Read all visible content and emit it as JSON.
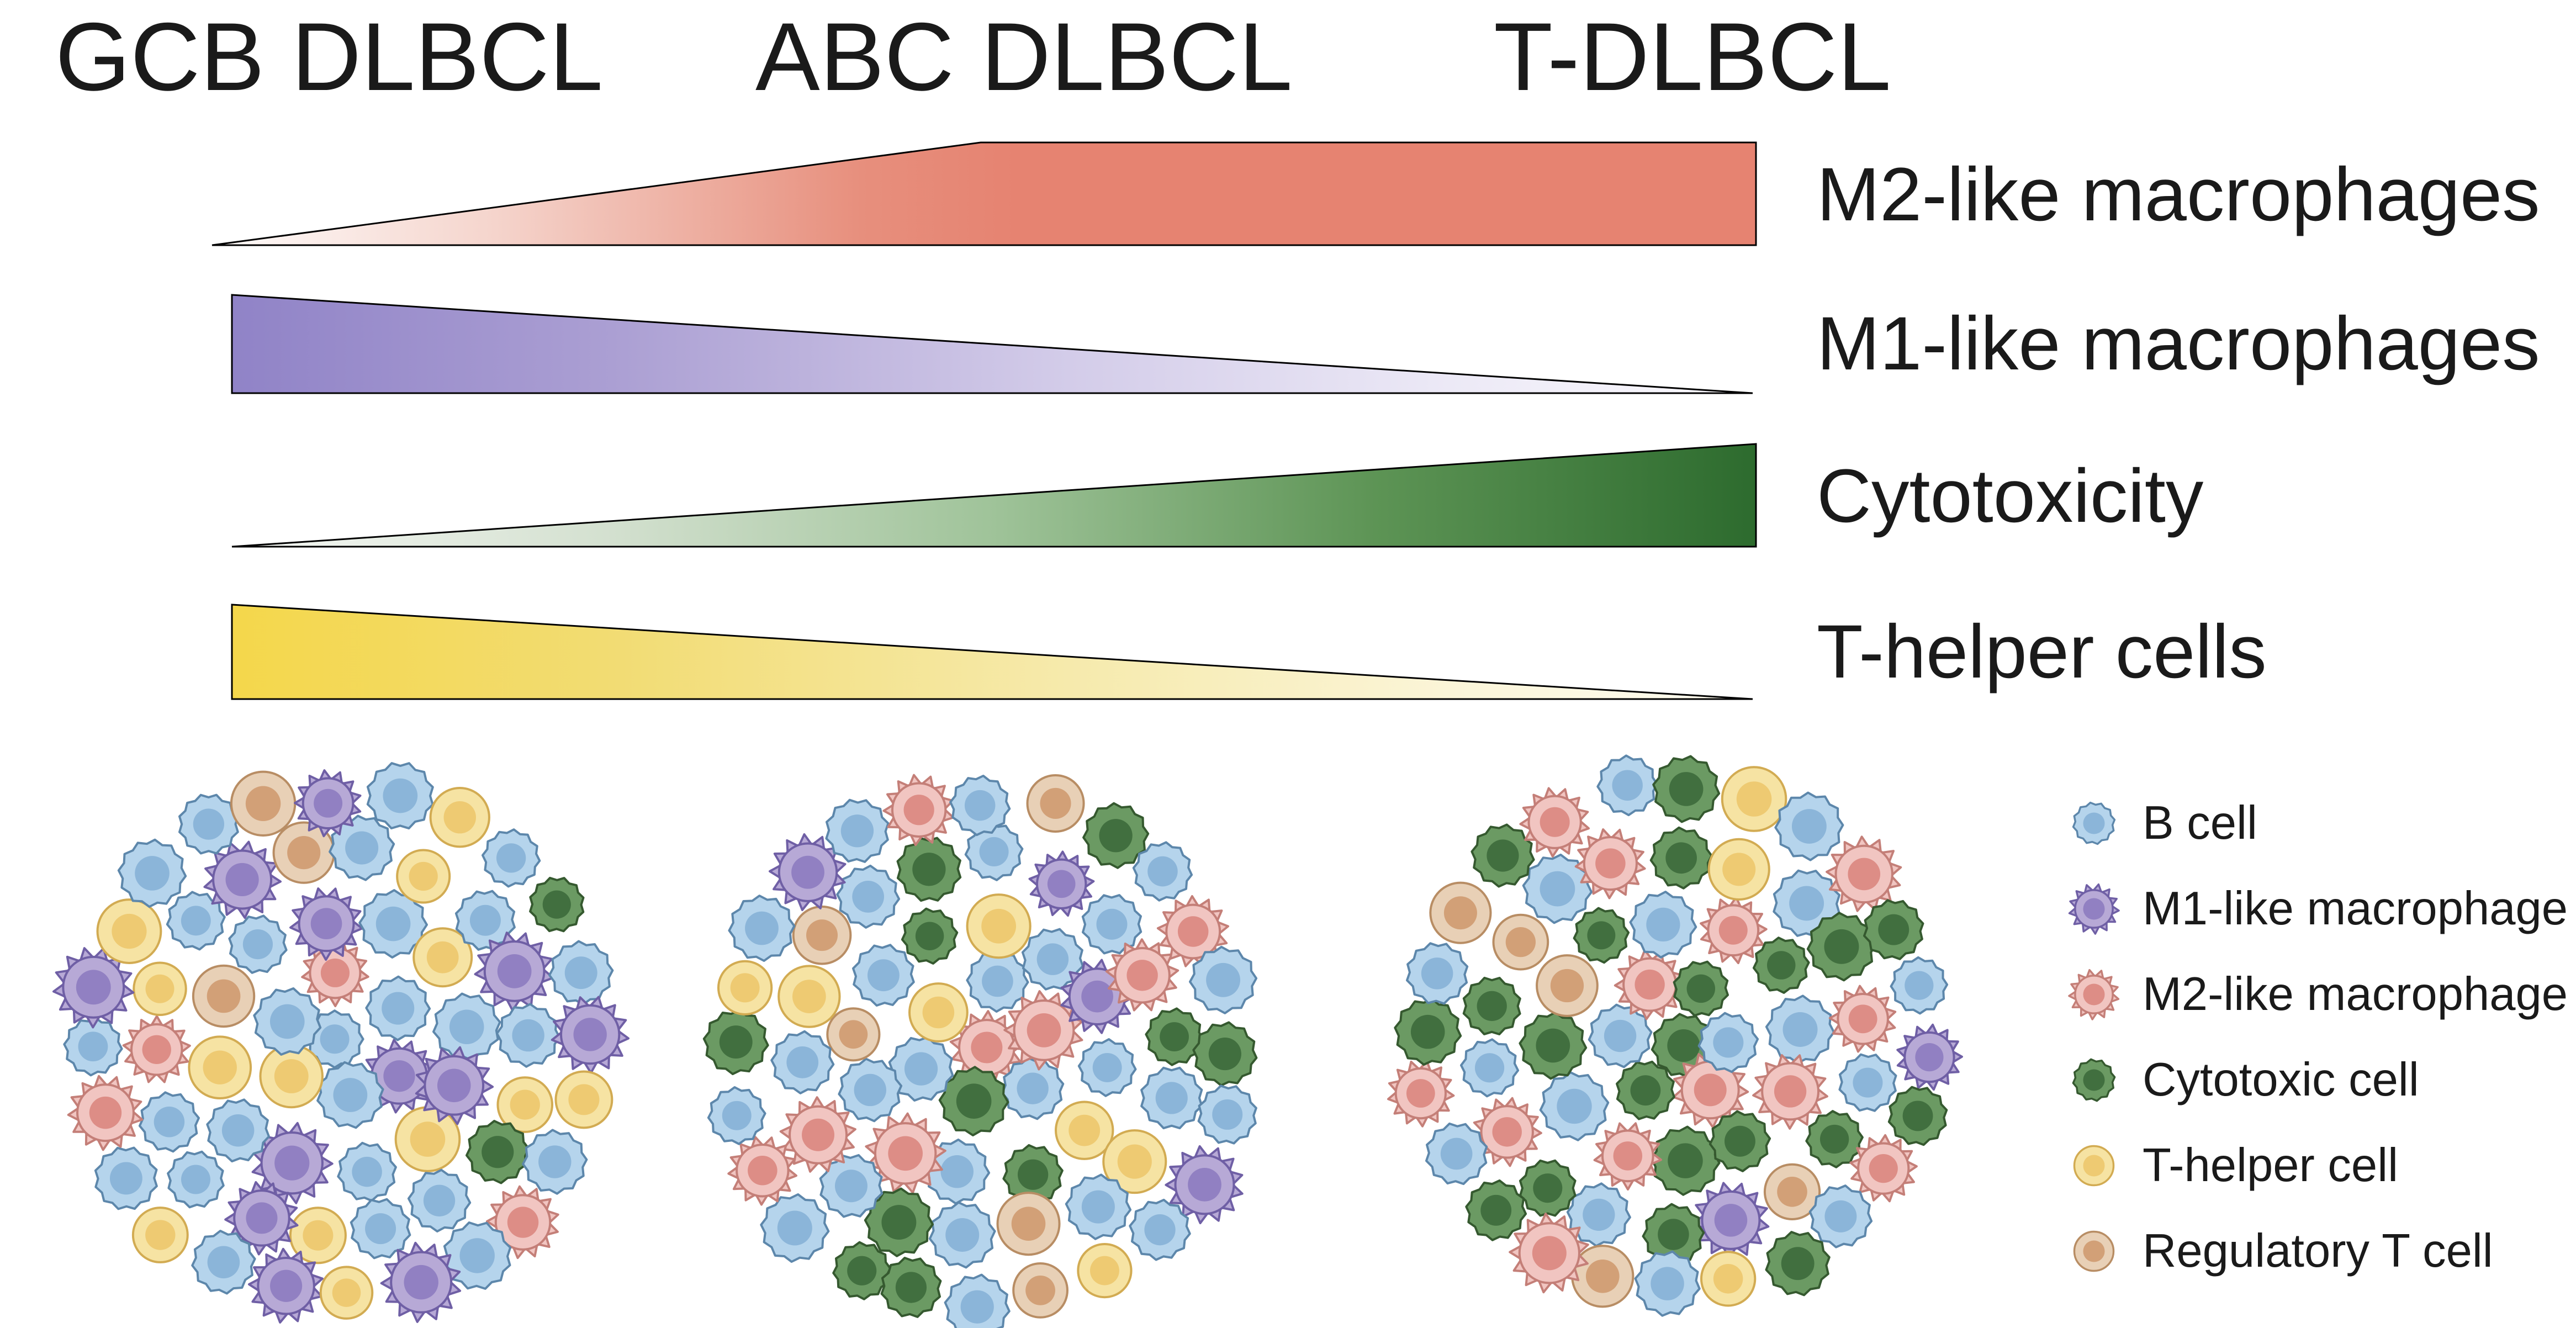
{
  "figure": {
    "background": "#ffffff",
    "columns": [
      {
        "label": "GCB DLBCL"
      },
      {
        "label": "ABC DLBCL"
      },
      {
        "label": "T-DLBCL"
      }
    ]
  },
  "gradient_bars": [
    {
      "label": "M2-like macrophages",
      "trend": "increases left to right, plateaus at right",
      "color": "#e68371",
      "stops": [
        {
          "offset": "0%",
          "color": "#fefbfa"
        },
        {
          "offset": "18%",
          "color": "#f5d5cd"
        },
        {
          "offset": "42%",
          "color": "#e78f7d"
        },
        {
          "offset": "52%",
          "color": "#e68371"
        },
        {
          "offset": "100%",
          "color": "#e68371"
        }
      ]
    },
    {
      "label": "M1-like macrophages",
      "trend": "decreases left to right",
      "color": "#9083c7",
      "stops": [
        {
          "offset": "0%",
          "color": "#9083c7"
        },
        {
          "offset": "25%",
          "color": "#ab9fd3"
        },
        {
          "offset": "55%",
          "color": "#d3cce9"
        },
        {
          "offset": "80%",
          "color": "#ece9f6"
        },
        {
          "offset": "100%",
          "color": "#faf9fd"
        }
      ]
    },
    {
      "label": "Cytotoxicity",
      "trend": "increases left to right",
      "color": "#2d6b2e",
      "stops": [
        {
          "offset": "0%",
          "color": "#f6f8f5"
        },
        {
          "offset": "25%",
          "color": "#d3e0cf"
        },
        {
          "offset": "50%",
          "color": "#9fc399"
        },
        {
          "offset": "75%",
          "color": "#5d9455"
        },
        {
          "offset": "100%",
          "color": "#2d6b2e"
        }
      ]
    },
    {
      "label": "T-helper cells",
      "trend": "decreases left to right",
      "color": "#f4d74b",
      "stops": [
        {
          "offset": "0%",
          "color": "#f4d74b"
        },
        {
          "offset": "25%",
          "color": "#f2dc73"
        },
        {
          "offset": "55%",
          "color": "#f6eaac"
        },
        {
          "offset": "80%",
          "color": "#fbf5d8"
        },
        {
          "offset": "100%",
          "color": "#fefcf2"
        }
      ]
    }
  ],
  "cell_types": {
    "B": {
      "label": "B cell",
      "icon_name": "b-cell-icon",
      "fill": "#b5d4ec",
      "nucleus": "#8bb5d9",
      "stroke": "#5d87ab",
      "edge": "bumpy"
    },
    "M1": {
      "label": "M1-like macrophage",
      "icon_name": "m1-like-macrophage-icon",
      "fill": "#b7a9d6",
      "nucleus": "#9180c2",
      "stroke": "#6f5fa5",
      "edge": "spiky"
    },
    "M2": {
      "label": "M2-like macrophage",
      "icon_name": "m2-like-macrophage-icon",
      "fill": "#f1c5c1",
      "nucleus": "#dd8d86",
      "stroke": "#c47f78",
      "edge": "spiky"
    },
    "C": {
      "label": "Cytotoxic cell",
      "icon_name": "cytotoxic-cell-icon",
      "fill": "#6b9a63",
      "nucleus": "#416f3f",
      "stroke": "#35592f",
      "edge": "bumpy"
    },
    "Th": {
      "label": "T-helper cell",
      "icon_name": "t-helper-cell-icon",
      "fill": "#f6e3a3",
      "nucleus": "#eeca72",
      "stroke": "#d2ab52",
      "edge": "smooth"
    },
    "Tr": {
      "label": "Regulatory T cell",
      "icon_name": "regulatory-t-cell-icon",
      "fill": "#e8d0b6",
      "nucleus": "#d2a077",
      "stroke": "#b88d64",
      "edge": "smooth"
    }
  },
  "legend": {
    "items": [
      {
        "type": "B",
        "label": "B cell"
      },
      {
        "type": "M1",
        "label": "M1-like macrophage"
      },
      {
        "type": "M2",
        "label": "M2-like macrophage"
      },
      {
        "type": "C",
        "label": "Cytotoxic cell"
      },
      {
        "type": "Th",
        "label": "T-helper cell"
      },
      {
        "type": "Tr",
        "label": "Regulatory T cell"
      }
    ]
  },
  "clusters": [
    {
      "name": "GCB DLBCL",
      "cells": [
        "B",
        "M1",
        "B",
        "Th",
        "B",
        "M2",
        "B",
        "Th",
        "B",
        "M1",
        "B",
        "Th",
        "Tr",
        "B",
        "M1",
        "B",
        "Th",
        "B",
        "M1",
        "B",
        "Th",
        "M1",
        "B",
        "B",
        "M2",
        "Th",
        "B",
        "M1",
        "Tr",
        "B",
        "Th",
        "B",
        "M1",
        "B",
        "Th",
        "C",
        "B",
        "M1",
        "B",
        "Th",
        "B",
        "M2",
        "B",
        "M1",
        "Th",
        "B",
        "B",
        "Tr",
        "M1",
        "B",
        "Th",
        "B",
        "C",
        "B",
        "M1",
        "Th",
        "B",
        "M2",
        "B",
        "M1",
        "Th"
      ]
    },
    {
      "name": "ABC DLBCL",
      "cells": [
        "M2",
        "B",
        "C",
        "B",
        "Th",
        "B",
        "M2",
        "C",
        "B",
        "M2",
        "B",
        "Tr",
        "B",
        "C",
        "Th",
        "B",
        "M1",
        "B",
        "Th",
        "B",
        "C",
        "B",
        "M2",
        "B",
        "Th",
        "Tr",
        "B",
        "C",
        "B",
        "M1",
        "B",
        "M2",
        "C",
        "B",
        "Th",
        "B",
        "Tr",
        "C",
        "B",
        "M2",
        "B",
        "C",
        "Th",
        "B",
        "M1",
        "B",
        "M2",
        "B",
        "Tr",
        "C",
        "B",
        "M2",
        "B",
        "C",
        "B",
        "M1",
        "B",
        "Th",
        "Tr",
        "B",
        "C"
      ]
    },
    {
      "name": "T-DLBCL",
      "cells": [
        "C",
        "M2",
        "C",
        "B",
        "M2",
        "C",
        "B",
        "C",
        "M2",
        "B",
        "C",
        "Tr",
        "C",
        "B",
        "M2",
        "C",
        "B",
        "M2",
        "C",
        "B",
        "C",
        "M2",
        "B",
        "C",
        "Tr",
        "B",
        "M2",
        "C",
        "Th",
        "B",
        "C",
        "M2",
        "B",
        "C",
        "Tr",
        "M1",
        "C",
        "C",
        "B",
        "M2",
        "C",
        "B",
        "Tr",
        "C",
        "M2",
        "B",
        "C",
        "Th",
        "B",
        "M2",
        "C",
        "B",
        "M1",
        "C",
        "M2",
        "B",
        "C",
        "Th",
        "B",
        "Tr",
        "M2"
      ]
    }
  ]
}
